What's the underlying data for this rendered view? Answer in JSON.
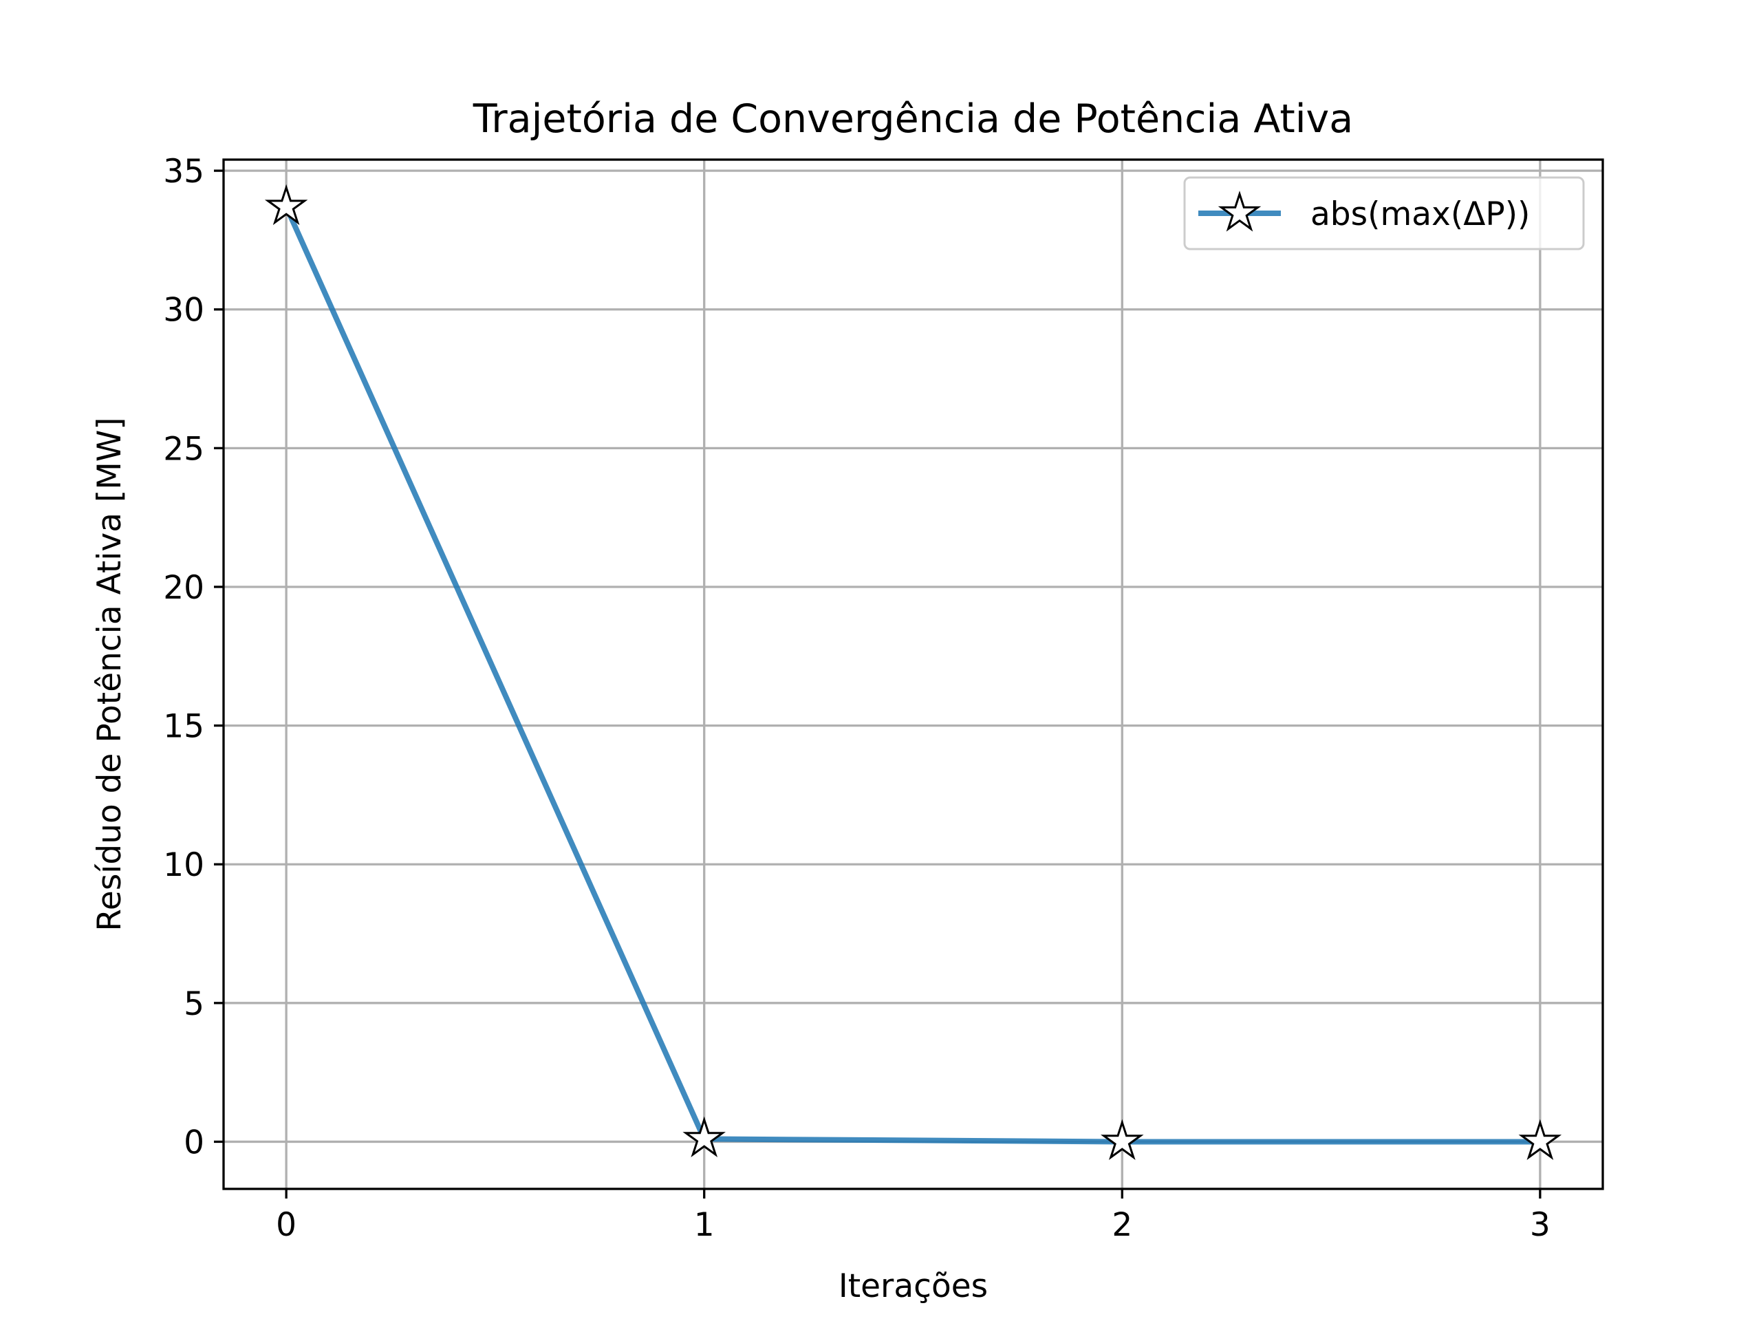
{
  "chart_data": {
    "type": "line",
    "title": "Trajetória de Convergência de Potência Ativa",
    "xlabel": "Iterações",
    "ylabel": "Resíduo de Potência Ativa [MW]",
    "x": [
      0,
      1,
      2,
      3
    ],
    "series": [
      {
        "name": "abs(max(ΔP))",
        "values": [
          33.7,
          0.1,
          0.0,
          0.0
        ],
        "color": "#1f77b4",
        "marker": "star"
      }
    ],
    "xlim": [
      -0.15,
      3.15
    ],
    "ylim": [
      -1.7,
      35.4
    ],
    "xticks": [
      0,
      1,
      2,
      3
    ],
    "yticks": [
      0,
      5,
      10,
      15,
      20,
      25,
      30,
      35
    ],
    "grid": true,
    "legend_position": "top-right"
  }
}
